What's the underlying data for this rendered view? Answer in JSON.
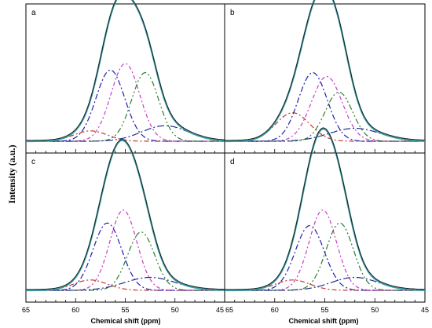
{
  "figure": {
    "ylabel": "Intensity (a.u.)",
    "xlabel": "Chemical shift (ppm)",
    "xticks": [
      "65",
      "60",
      "55",
      "50",
      "45"
    ]
  },
  "colors": {
    "frame": "#000000",
    "envelope_exp": "#1a1a1a",
    "envelope_fit": "#3a9aa0",
    "peak_1": "#c0392b",
    "peak_2": "#1f1fb4",
    "peak_3": "#c83cc8",
    "peak_4": "#2e7d2e",
    "peak_5": "#1f2f8f"
  },
  "chart_data": [
    {
      "type": "line",
      "panel": "a",
      "xlim": [
        65,
        45
      ],
      "xlabel": "",
      "ylabel": "",
      "grid": false,
      "peaks": [
        {
          "color": "peak_1",
          "center": 58.5,
          "fwhm": 4.0,
          "height": 0.08
        },
        {
          "color": "peak_2",
          "center": 56.5,
          "fwhm": 3.4,
          "height": 0.55
        },
        {
          "color": "peak_3",
          "center": 55.0,
          "fwhm": 3.4,
          "height": 0.6
        },
        {
          "color": "peak_4",
          "center": 53.0,
          "fwhm": 3.2,
          "height": 0.53
        },
        {
          "color": "peak_5",
          "center": 51.0,
          "fwhm": 5.5,
          "height": 0.12
        }
      ]
    },
    {
      "type": "line",
      "panel": "b",
      "xlim": [
        65,
        45
      ],
      "xlabel": "",
      "ylabel": "",
      "grid": false,
      "peaks": [
        {
          "color": "peak_1",
          "center": 58.2,
          "fwhm": 4.0,
          "height": 0.22
        },
        {
          "color": "peak_2",
          "center": 56.2,
          "fwhm": 3.4,
          "height": 0.53
        },
        {
          "color": "peak_3",
          "center": 54.8,
          "fwhm": 3.6,
          "height": 0.5
        },
        {
          "color": "peak_4",
          "center": 53.6,
          "fwhm": 3.2,
          "height": 0.38
        },
        {
          "color": "peak_5",
          "center": 52.0,
          "fwhm": 6.0,
          "height": 0.1
        }
      ]
    },
    {
      "type": "line",
      "panel": "c",
      "xlim": [
        65,
        45
      ],
      "xlabel": "",
      "ylabel": "",
      "grid": false,
      "peaks": [
        {
          "color": "peak_1",
          "center": 58.5,
          "fwhm": 4.0,
          "height": 0.08
        },
        {
          "color": "peak_2",
          "center": 56.8,
          "fwhm": 3.4,
          "height": 0.52
        },
        {
          "color": "peak_3",
          "center": 55.2,
          "fwhm": 3.2,
          "height": 0.62
        },
        {
          "color": "peak_4",
          "center": 53.4,
          "fwhm": 3.2,
          "height": 0.45
        },
        {
          "color": "peak_5",
          "center": 52.5,
          "fwhm": 6.0,
          "height": 0.1
        }
      ]
    },
    {
      "type": "line",
      "panel": "d",
      "xlim": [
        65,
        45
      ],
      "xlabel": "",
      "ylabel": "",
      "grid": false,
      "peaks": [
        {
          "color": "peak_1",
          "center": 58.2,
          "fwhm": 4.0,
          "height": 0.08
        },
        {
          "color": "peak_2",
          "center": 56.5,
          "fwhm": 3.4,
          "height": 0.5
        },
        {
          "color": "peak_3",
          "center": 55.2,
          "fwhm": 3.2,
          "height": 0.62
        },
        {
          "color": "peak_4",
          "center": 53.5,
          "fwhm": 3.2,
          "height": 0.52
        },
        {
          "color": "peak_5",
          "center": 52.0,
          "fwhm": 5.5,
          "height": 0.1
        }
      ]
    }
  ]
}
